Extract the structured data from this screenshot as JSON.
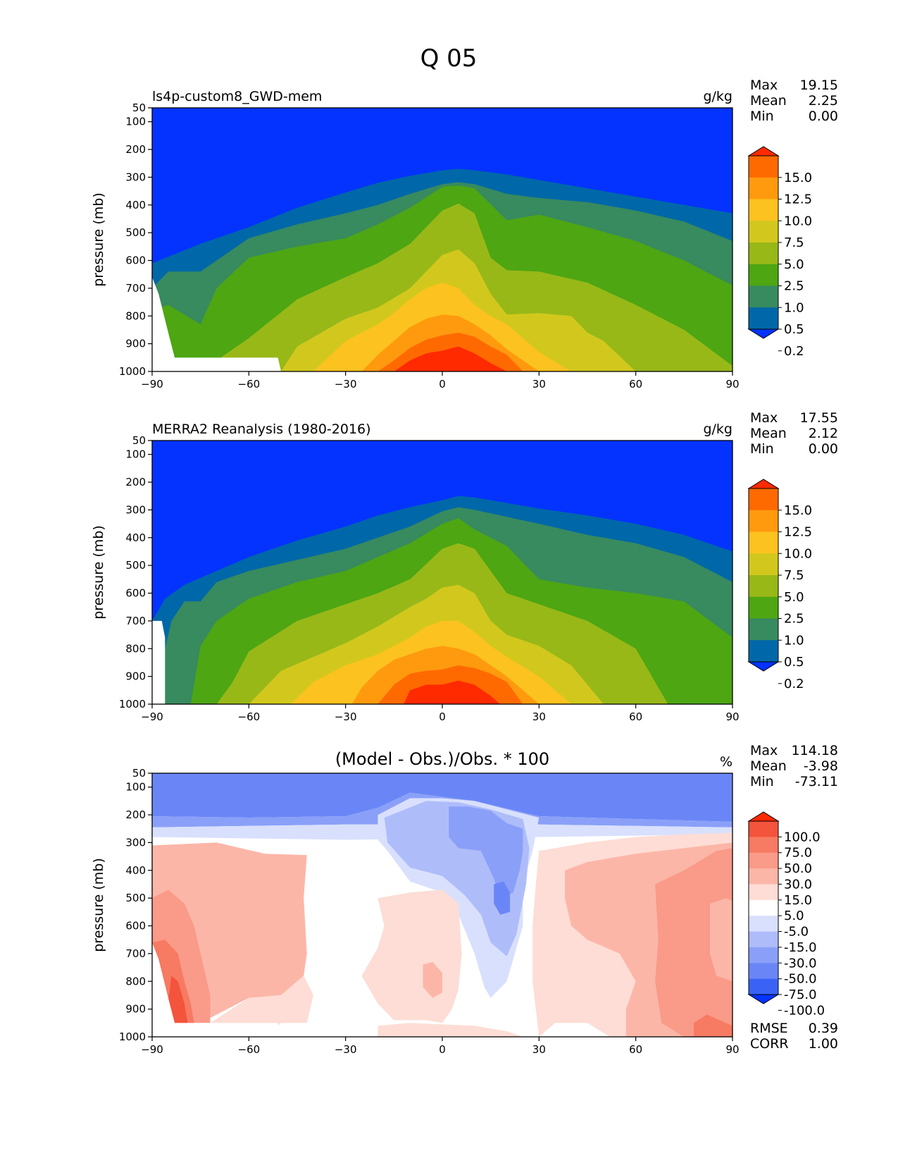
{
  "figure_title": "Q 05",
  "chart_data": [
    {
      "type": "contourf",
      "title": "ls4p-custom8_GWD-mem",
      "units": "g/kg",
      "xlabel": "",
      "ylabel": "pressure (mb)",
      "xlim": [
        -90,
        90
      ],
      "ylim": [
        1000,
        50
      ],
      "xticks": [
        "−90",
        "−60",
        "−30",
        "0",
        "30",
        "60",
        "90"
      ],
      "yticks": [
        "50",
        "100",
        "200",
        "300",
        "400",
        "500",
        "600",
        "700",
        "800",
        "900",
        "1000"
      ],
      "stats": {
        "max_label": "Max",
        "max": "19.15",
        "mean_label": "Mean",
        "mean": "2.25",
        "min_label": "Min",
        "min": "0.00"
      },
      "colorbar": {
        "labels": [
          "15.0",
          "12.5",
          "10.0",
          "7.5",
          "5.0",
          "2.5",
          "1.0",
          "0.5",
          "0.2"
        ],
        "colors": [
          "#ff2a00",
          "#ff6a00",
          "#ff9a0e",
          "#fcc21f",
          "#d2c81d",
          "#98b818",
          "#4da612",
          "#388a5f",
          "#0068a8",
          "#0433ff"
        ]
      },
      "levels": [
        0.2,
        0.5,
        1.0,
        2.5,
        5.0,
        7.5,
        10.0,
        12.5,
        15.0
      ],
      "contour_pressures": [
        {
          "level": 0.2,
          "lat": [
            -90,
            -75,
            -60,
            -45,
            -30,
            -20,
            -10,
            0,
            5,
            10,
            20,
            30,
            45,
            60,
            75,
            90
          ],
          "p": [
            610,
            540,
            480,
            410,
            355,
            320,
            295,
            275,
            270,
            275,
            290,
            310,
            340,
            370,
            400,
            430
          ]
        },
        {
          "level": 0.5,
          "lat": [
            -90,
            -85,
            -75,
            -60,
            -45,
            -30,
            -20,
            -10,
            0,
            5,
            10,
            20,
            30,
            45,
            60,
            75,
            90
          ],
          "p": [
            700,
            640,
            640,
            520,
            470,
            430,
            400,
            360,
            325,
            318,
            325,
            360,
            375,
            390,
            420,
            460,
            530
          ]
        },
        {
          "level": 1.0,
          "lat": [
            -90,
            -85,
            -75,
            -70,
            -60,
            -45,
            -30,
            -20,
            -10,
            0,
            5,
            10,
            20,
            30,
            45,
            60,
            75,
            90
          ],
          "p": [
            780,
            760,
            830,
            700,
            590,
            550,
            520,
            470,
            410,
            335,
            330,
            340,
            455,
            435,
            480,
            530,
            600,
            690
          ]
        },
        {
          "level": 2.5,
          "lat": [
            -90,
            -75,
            -60,
            -45,
            -30,
            -20,
            -10,
            0,
            5,
            10,
            15,
            20,
            30,
            45,
            60,
            75,
            90
          ],
          "p": [
            1000,
            1000,
            880,
            740,
            660,
            610,
            540,
            420,
            395,
            430,
            590,
            635,
            640,
            680,
            760,
            850,
            980
          ]
        },
        {
          "level": 5.0,
          "lat": [
            -90,
            -50,
            -45,
            -30,
            -20,
            -10,
            -5,
            0,
            5,
            10,
            15,
            20,
            30,
            40,
            45,
            50,
            60,
            90
          ],
          "p": [
            1000,
            1000,
            910,
            810,
            770,
            700,
            640,
            580,
            560,
            610,
            720,
            795,
            790,
            800,
            860,
            890,
            1000,
            1000
          ]
        },
        {
          "level": 7.5,
          "lat": [
            -90,
            -40,
            -30,
            -20,
            -15,
            -10,
            -5,
            0,
            5,
            10,
            15,
            20,
            30,
            40,
            90
          ],
          "p": [
            1000,
            1000,
            890,
            830,
            790,
            740,
            700,
            680,
            700,
            760,
            800,
            830,
            930,
            1000,
            1000
          ]
        },
        {
          "level": 10.0,
          "lat": [
            -90,
            -25,
            -20,
            -15,
            -10,
            -5,
            0,
            5,
            10,
            15,
            20,
            30,
            90
          ],
          "p": [
            1000,
            1000,
            940,
            890,
            840,
            810,
            795,
            800,
            830,
            870,
            920,
            1000,
            1000
          ]
        },
        {
          "level": 12.5,
          "lat": [
            -90,
            -20,
            -15,
            -10,
            -5,
            0,
            5,
            10,
            15,
            20,
            25,
            90
          ],
          "p": [
            1000,
            1000,
            960,
            915,
            885,
            870,
            860,
            875,
            910,
            940,
            1000,
            1000
          ]
        },
        {
          "level": 15.0,
          "lat": [
            -90,
            -15,
            -10,
            -5,
            0,
            5,
            10,
            15,
            20,
            90
          ],
          "p": [
            1000,
            1000,
            960,
            935,
            925,
            910,
            935,
            970,
            1000,
            1000
          ]
        }
      ]
    },
    {
      "type": "contourf",
      "title": "MERRA2 Reanalysis (1980-2016)",
      "units": "g/kg",
      "xlabel": "",
      "ylabel": "pressure (mb)",
      "xlim": [
        -90,
        90
      ],
      "ylim": [
        1000,
        50
      ],
      "xticks": [
        "−90",
        "−60",
        "−30",
        "0",
        "30",
        "60",
        "90"
      ],
      "yticks": [
        "50",
        "100",
        "200",
        "300",
        "400",
        "500",
        "600",
        "700",
        "800",
        "900",
        "1000"
      ],
      "stats": {
        "max_label": "Max",
        "max": "17.55",
        "mean_label": "Mean",
        "mean": "2.12",
        "min_label": "Min",
        "min": "0.00"
      },
      "colorbar": {
        "labels": [
          "15.0",
          "12.5",
          "10.0",
          "7.5",
          "5.0",
          "2.5",
          "1.0",
          "0.5",
          "0.2"
        ],
        "colors": [
          "#ff2a00",
          "#ff6a00",
          "#ff9a0e",
          "#fcc21f",
          "#d2c81d",
          "#98b818",
          "#4da612",
          "#388a5f",
          "#0068a8",
          "#0433ff"
        ]
      },
      "levels": [
        0.2,
        0.5,
        1.0,
        2.5,
        5.0,
        7.5,
        10.0,
        12.5,
        15.0
      ],
      "contour_pressures": [
        {
          "level": 0.2,
          "lat": [
            -90,
            -86,
            -80,
            -70,
            -60,
            -45,
            -30,
            -20,
            -10,
            0,
            5,
            10,
            20,
            30,
            45,
            60,
            75,
            90
          ],
          "p": [
            700,
            620,
            570,
            520,
            470,
            410,
            360,
            320,
            290,
            265,
            250,
            255,
            275,
            295,
            320,
            350,
            390,
            450
          ]
        },
        {
          "level": 0.5,
          "lat": [
            -90,
            -84,
            -80,
            -75,
            -70,
            -60,
            -45,
            -30,
            -20,
            -10,
            0,
            5,
            10,
            20,
            30,
            45,
            60,
            75,
            90
          ],
          "p": [
            1000,
            700,
            630,
            630,
            560,
            520,
            480,
            440,
            400,
            360,
            305,
            290,
            300,
            325,
            350,
            390,
            420,
            470,
            560
          ]
        },
        {
          "level": 1.0,
          "lat": [
            -90,
            -78,
            -75,
            -70,
            -60,
            -45,
            -30,
            -20,
            -10,
            0,
            5,
            10,
            20,
            30,
            45,
            60,
            75,
            90
          ],
          "p": [
            1000,
            1000,
            790,
            700,
            620,
            560,
            520,
            470,
            420,
            350,
            330,
            370,
            430,
            550,
            580,
            600,
            630,
            760
          ]
        },
        {
          "level": 2.5,
          "lat": [
            -90,
            -70,
            -65,
            -60,
            -45,
            -30,
            -20,
            -10,
            0,
            5,
            10,
            20,
            30,
            45,
            60,
            70,
            90
          ],
          "p": [
            1000,
            1000,
            920,
            810,
            700,
            640,
            600,
            550,
            440,
            420,
            440,
            600,
            640,
            700,
            800,
            1000,
            1000
          ]
        },
        {
          "level": 5.0,
          "lat": [
            -90,
            -60,
            -50,
            -40,
            -30,
            -20,
            -10,
            -5,
            0,
            5,
            10,
            15,
            20,
            30,
            40,
            50,
            90
          ],
          "p": [
            1000,
            1000,
            880,
            830,
            780,
            720,
            650,
            620,
            580,
            570,
            600,
            700,
            750,
            790,
            860,
            1000,
            1000
          ]
        },
        {
          "level": 7.5,
          "lat": [
            -90,
            -47,
            -40,
            -30,
            -20,
            -15,
            -10,
            -5,
            0,
            5,
            10,
            15,
            20,
            30,
            40,
            90
          ],
          "p": [
            1000,
            1000,
            920,
            860,
            820,
            790,
            760,
            720,
            700,
            700,
            740,
            790,
            830,
            900,
            1000,
            1000
          ]
        },
        {
          "level": 10.0,
          "lat": [
            -90,
            -28,
            -25,
            -20,
            -15,
            -10,
            -5,
            0,
            5,
            10,
            15,
            20,
            30,
            90
          ],
          "p": [
            1000,
            1000,
            940,
            880,
            840,
            820,
            800,
            790,
            800,
            820,
            860,
            900,
            1000,
            1000
          ]
        },
        {
          "level": 12.5,
          "lat": [
            -90,
            -20,
            -15,
            -10,
            -5,
            0,
            5,
            10,
            15,
            20,
            25,
            90
          ],
          "p": [
            1000,
            1000,
            930,
            890,
            880,
            875,
            860,
            870,
            890,
            920,
            1000,
            1000
          ]
        },
        {
          "level": 15.0,
          "lat": [
            -90,
            -12,
            -10,
            -5,
            0,
            5,
            10,
            15,
            18,
            90
          ],
          "p": [
            1000,
            1000,
            950,
            930,
            930,
            915,
            930,
            970,
            1000,
            1000
          ]
        }
      ]
    },
    {
      "type": "contourf",
      "title": "(Model - Obs.)/Obs. * 100",
      "units": "%",
      "xlabel": "",
      "ylabel": "pressure (mb)",
      "xlim": [
        -90,
        90
      ],
      "ylim": [
        1000,
        50
      ],
      "xticks": [
        "−90",
        "−60",
        "−30",
        "0",
        "30",
        "60",
        "90"
      ],
      "yticks": [
        "50",
        "100",
        "200",
        "300",
        "400",
        "500",
        "600",
        "700",
        "800",
        "900",
        "1000"
      ],
      "stats": {
        "max_label": "Max",
        "max": "114.18",
        "mean_label": "Mean",
        "mean": "-3.98",
        "min_label": "Min",
        "min": "-73.11"
      },
      "extra_stats": {
        "rmse_label": "RMSE",
        "rmse": "0.39",
        "corr_label": "CORR",
        "corr": "1.00"
      },
      "colorbar": {
        "labels": [
          "100.0",
          "75.0",
          "50.0",
          "30.0",
          "15.0",
          "5.0",
          "-5.0",
          "-15.0",
          "-30.0",
          "-50.0",
          "-75.0",
          "-100.0"
        ],
        "colors": [
          "#ff2a00",
          "#f4533c",
          "#f77a62",
          "#fa9a88",
          "#fcb6a8",
          "#fdddd5",
          "#ffffff",
          "#d9e0fd",
          "#aebdfa",
          "#8aa0f8",
          "#6a86f6",
          "#3a63f5",
          "#0433ff"
        ]
      },
      "regions": [
        {
          "name": "upper-negative-band",
          "value_range": "-50 to -30"
        },
        {
          "name": "tropical-negative-tongue",
          "value_range": "-30 to -5"
        },
        {
          "name": "southern-positive-lobe",
          "value_range": "15 to 50"
        },
        {
          "name": "southern-polar-maximum",
          "value_range": "75 to 100"
        },
        {
          "name": "northern-positive-lobe",
          "value_range": "15 to 50"
        },
        {
          "name": "near-zero-band",
          "value_range": "-5 to 5"
        }
      ]
    }
  ]
}
